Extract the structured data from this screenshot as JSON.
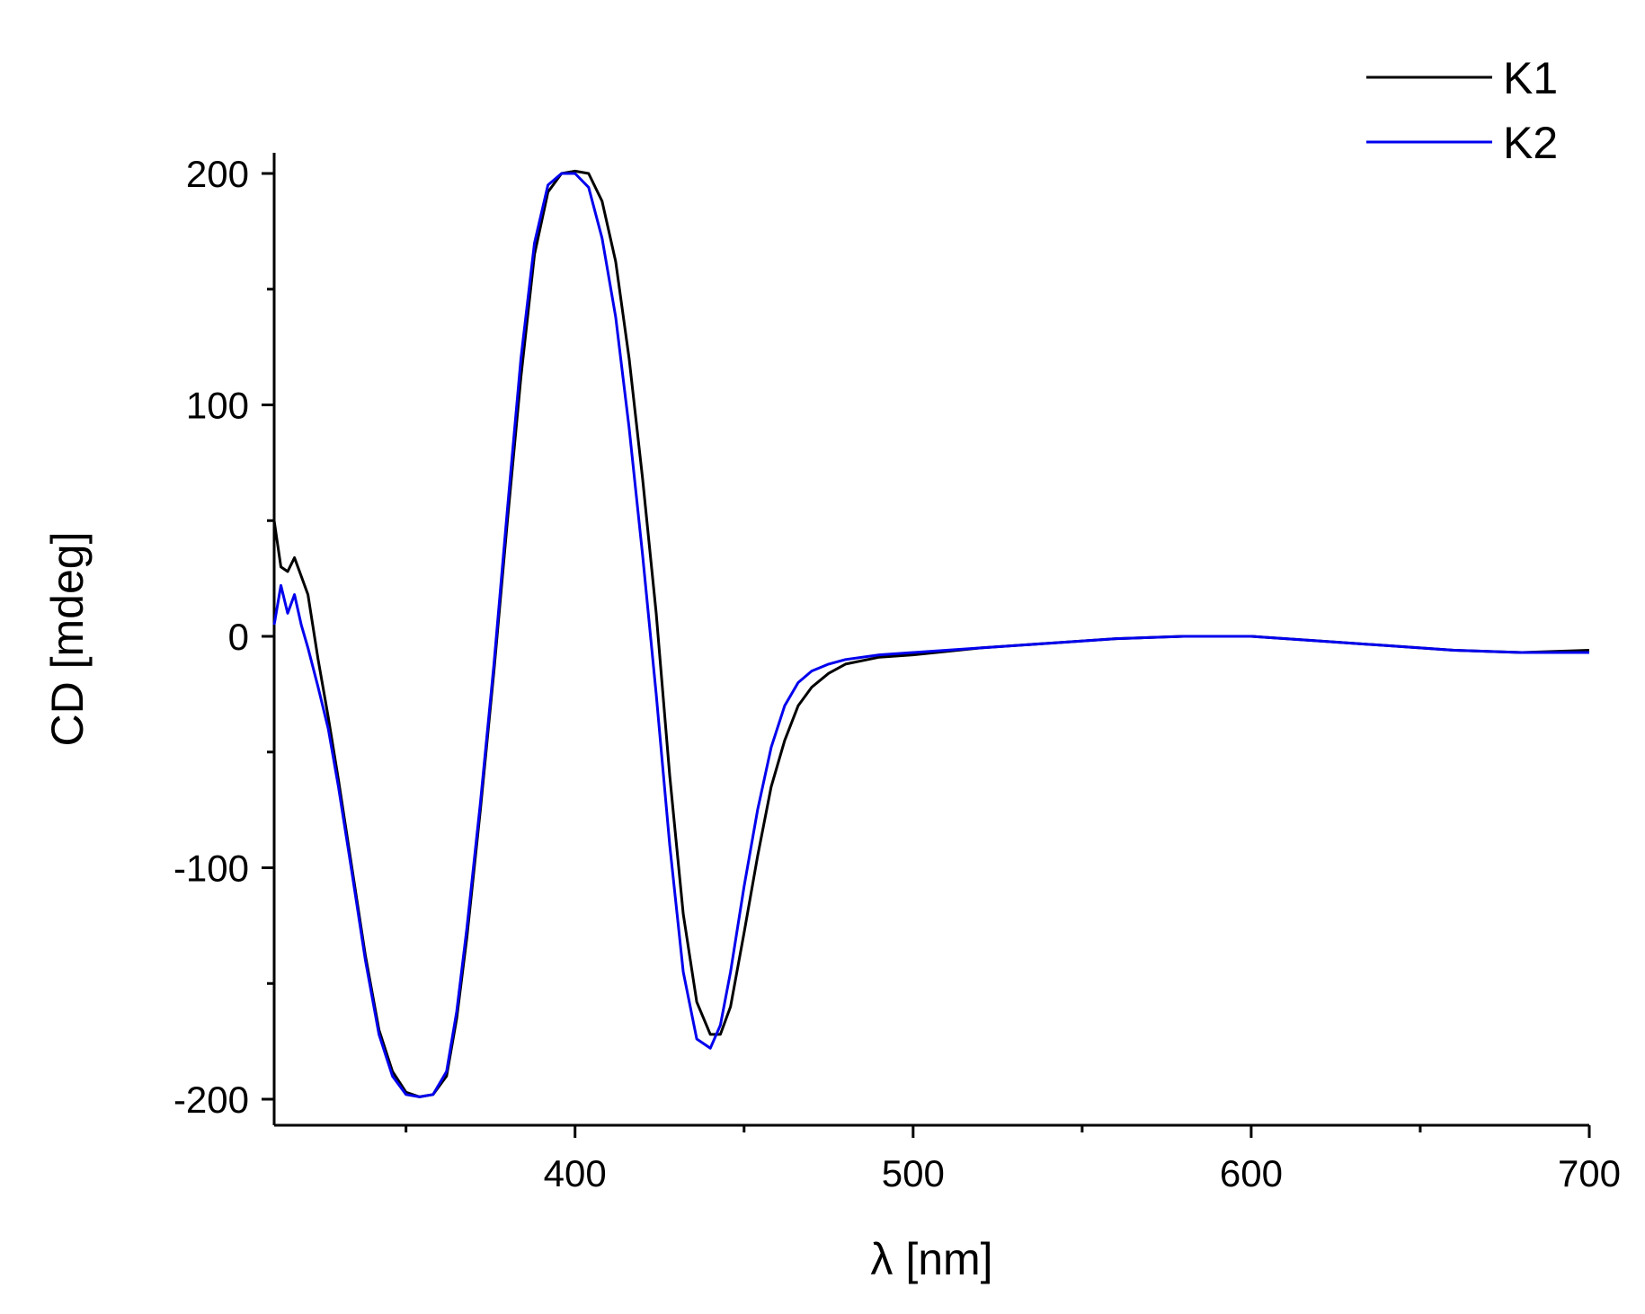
{
  "chart_data": {
    "type": "line",
    "title": "",
    "xlabel": "λ [nm]",
    "ylabel": "CD [mdeg]",
    "xlim": [
      311,
      700
    ],
    "ylim": [
      -210,
      210
    ],
    "x_ticks": [
      400,
      500,
      600,
      700
    ],
    "x_minor_ticks": [
      350,
      450,
      550,
      650
    ],
    "y_ticks": [
      -200,
      -100,
      0,
      100,
      200
    ],
    "y_minor_ticks": [
      -150,
      -50,
      50,
      150
    ],
    "legend_position": "top-right",
    "grid": false,
    "series": [
      {
        "name": "K1",
        "color": "#000000",
        "x": [
          311,
          313,
          315,
          317,
          319,
          321,
          324,
          327,
          330,
          334,
          338,
          342,
          346,
          350,
          354,
          358,
          362,
          365,
          368,
          372,
          376,
          380,
          384,
          388,
          392,
          396,
          400,
          404,
          408,
          412,
          416,
          420,
          424,
          428,
          432,
          436,
          440,
          443,
          446,
          450,
          454,
          458,
          462,
          466,
          470,
          475,
          480,
          490,
          500,
          520,
          540,
          560,
          580,
          600,
          620,
          640,
          660,
          680,
          700
        ],
        "y": [
          50,
          30,
          28,
          34,
          26,
          18,
          -10,
          -35,
          -62,
          -100,
          -138,
          -170,
          -188,
          -197,
          -199,
          -198,
          -190,
          -165,
          -130,
          -75,
          -15,
          50,
          112,
          165,
          192,
          200,
          201,
          200,
          188,
          162,
          120,
          68,
          10,
          -60,
          -120,
          -158,
          -172,
          -172,
          -160,
          -128,
          -95,
          -65,
          -45,
          -30,
          -22,
          -16,
          -12,
          -9,
          -8,
          -5,
          -3,
          -1,
          0,
          0,
          -2,
          -4,
          -6,
          -7,
          -6
        ]
      },
      {
        "name": "K2",
        "color": "#0000ee",
        "x": [
          311,
          313,
          315,
          317,
          319,
          321,
          324,
          327,
          330,
          334,
          338,
          342,
          346,
          350,
          354,
          358,
          362,
          365,
          368,
          372,
          376,
          380,
          384,
          388,
          392,
          396,
          400,
          404,
          408,
          412,
          416,
          420,
          424,
          428,
          432,
          436,
          440,
          443,
          446,
          450,
          454,
          458,
          462,
          466,
          470,
          475,
          480,
          490,
          500,
          520,
          540,
          560,
          580,
          600,
          620,
          640,
          660,
          680,
          700
        ],
        "y": [
          5,
          22,
          10,
          18,
          5,
          -5,
          -22,
          -40,
          -65,
          -102,
          -140,
          -172,
          -190,
          -198,
          -199,
          -198,
          -188,
          -162,
          -126,
          -72,
          -12,
          55,
          120,
          170,
          195,
          200,
          200,
          194,
          172,
          138,
          90,
          35,
          -25,
          -90,
          -145,
          -174,
          -178,
          -168,
          -145,
          -108,
          -75,
          -48,
          -30,
          -20,
          -15,
          -12,
          -10,
          -8,
          -7,
          -5,
          -3,
          -1,
          0,
          0,
          -2,
          -4,
          -6,
          -7,
          -7
        ]
      }
    ]
  }
}
